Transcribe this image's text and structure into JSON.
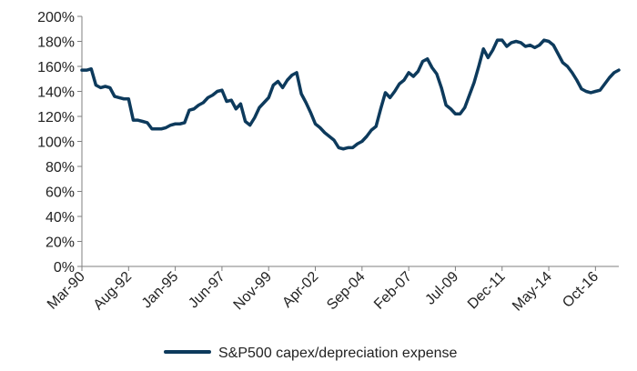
{
  "chart_data": {
    "type": "line",
    "x_start": "Mar-90",
    "x_step_months": 3,
    "x_ticks": [
      "Mar-90",
      "Aug-92",
      "Jan-95",
      "Jun-97",
      "Nov-99",
      "Apr-02",
      "Sep-04",
      "Feb-07",
      "Jul-09",
      "Dec-11",
      "May-14",
      "Oct-16"
    ],
    "y_ticks": [
      "0%",
      "20%",
      "40%",
      "60%",
      "80%",
      "100%",
      "120%",
      "140%",
      "160%",
      "180%",
      "200%"
    ],
    "ylim": [
      0,
      200
    ],
    "y_unit": "%",
    "legend_position": "bottom",
    "grid": false,
    "series": [
      {
        "name": "S&P500 capex/depreciation expense",
        "color": "#0d3a5c",
        "values": [
          157,
          157,
          158,
          145,
          143,
          144,
          143,
          136,
          135,
          134,
          134,
          117,
          117,
          116,
          115,
          110,
          110,
          110,
          111,
          113,
          114,
          114,
          115,
          125,
          126,
          129,
          131,
          135,
          137,
          140,
          141,
          132,
          133,
          126,
          130,
          116,
          113,
          119,
          127,
          131,
          135,
          145,
          148,
          143,
          149,
          153,
          155,
          138,
          131,
          123,
          114,
          111,
          107,
          104,
          101,
          95,
          94,
          95,
          95,
          98,
          100,
          104,
          109,
          112,
          126,
          139,
          135,
          140,
          146,
          149,
          155,
          152,
          156,
          164,
          166,
          159,
          154,
          143,
          129,
          126,
          122,
          122,
          127,
          137,
          147,
          160,
          174,
          167,
          173,
          181,
          181,
          176,
          179,
          180,
          179,
          176,
          177,
          175,
          177,
          181,
          180,
          177,
          170,
          163,
          160,
          155,
          149,
          142,
          140,
          139,
          140,
          141,
          146,
          151,
          155,
          157
        ]
      }
    ]
  }
}
